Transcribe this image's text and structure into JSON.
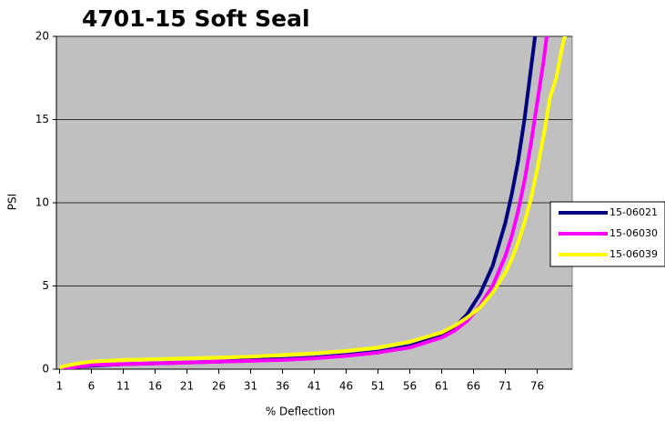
{
  "chart_data": {
    "type": "line",
    "title": "4701-15 Soft Seal",
    "x_label": "% Deflection",
    "y_label": "PSI",
    "x": [
      1,
      2,
      4,
      6,
      11,
      16,
      21,
      26,
      31,
      36,
      41,
      46,
      51,
      56,
      61,
      63,
      65,
      67,
      69,
      71,
      72,
      73,
      74,
      75,
      76,
      77,
      78,
      79,
      80,
      81
    ],
    "series": [
      {
        "name": "15-06021",
        "color": "#000080",
        "values": [
          0,
          0.05,
          0.15,
          0.2,
          0.3,
          0.35,
          0.4,
          0.45,
          0.55,
          0.6,
          0.7,
          0.85,
          1.05,
          1.4,
          2.0,
          2.5,
          3.3,
          4.5,
          6.2,
          8.8,
          10.5,
          12.5,
          15,
          18,
          21,
          null,
          null,
          null,
          null,
          null
        ]
      },
      {
        "name": "15-06030",
        "color": "#ff00ff",
        "values": [
          0,
          0.05,
          0.15,
          0.25,
          0.3,
          0.35,
          0.4,
          0.45,
          0.5,
          0.55,
          0.65,
          0.8,
          1.0,
          1.3,
          1.9,
          2.3,
          2.9,
          3.8,
          5.0,
          6.8,
          8.0,
          9.5,
          11.3,
          13.5,
          16,
          18.5,
          21.5,
          null,
          null,
          null
        ]
      },
      {
        "name": "15-06039",
        "color": "#ffff00",
        "values": [
          0.1,
          0.2,
          0.35,
          0.45,
          0.55,
          0.6,
          0.65,
          0.7,
          0.75,
          0.85,
          0.95,
          1.1,
          1.3,
          1.65,
          2.2,
          2.6,
          3.1,
          3.7,
          4.6,
          5.8,
          6.6,
          7.6,
          8.8,
          10.2,
          12,
          14,
          16.3,
          17.5,
          19.5,
          21
        ]
      }
    ],
    "xlim": [
      0.5,
      81.5
    ],
    "xticks": [
      1,
      6,
      11,
      16,
      21,
      26,
      31,
      36,
      41,
      46,
      51,
      56,
      61,
      66,
      71,
      76
    ],
    "ylim": [
      0,
      20
    ],
    "yticks": [
      0,
      5,
      10,
      15,
      20
    ],
    "grid": true,
    "legend": "right"
  }
}
